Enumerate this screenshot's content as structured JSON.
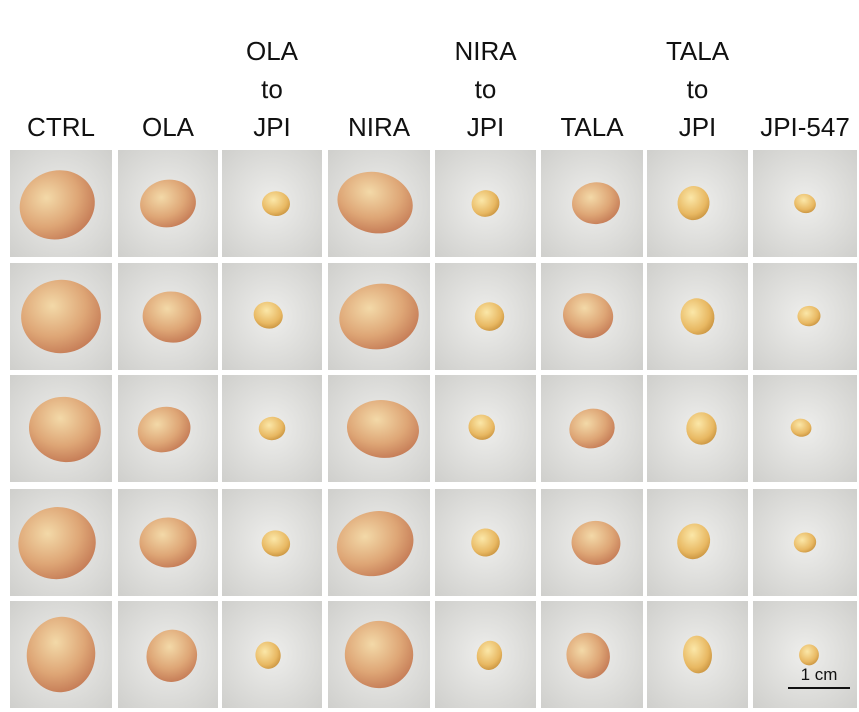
{
  "columns": [
    [
      "CTRL"
    ],
    [
      "OLA"
    ],
    [
      "OLA",
      "to",
      "JPI"
    ],
    [
      "NIRA"
    ],
    [
      "NIRA",
      "to",
      "JPI"
    ],
    [
      "TALA"
    ],
    [
      "TALA",
      "to",
      "JPI"
    ],
    [
      "JPI-547"
    ]
  ],
  "scale_bar": {
    "label": "1 cm"
  }
}
